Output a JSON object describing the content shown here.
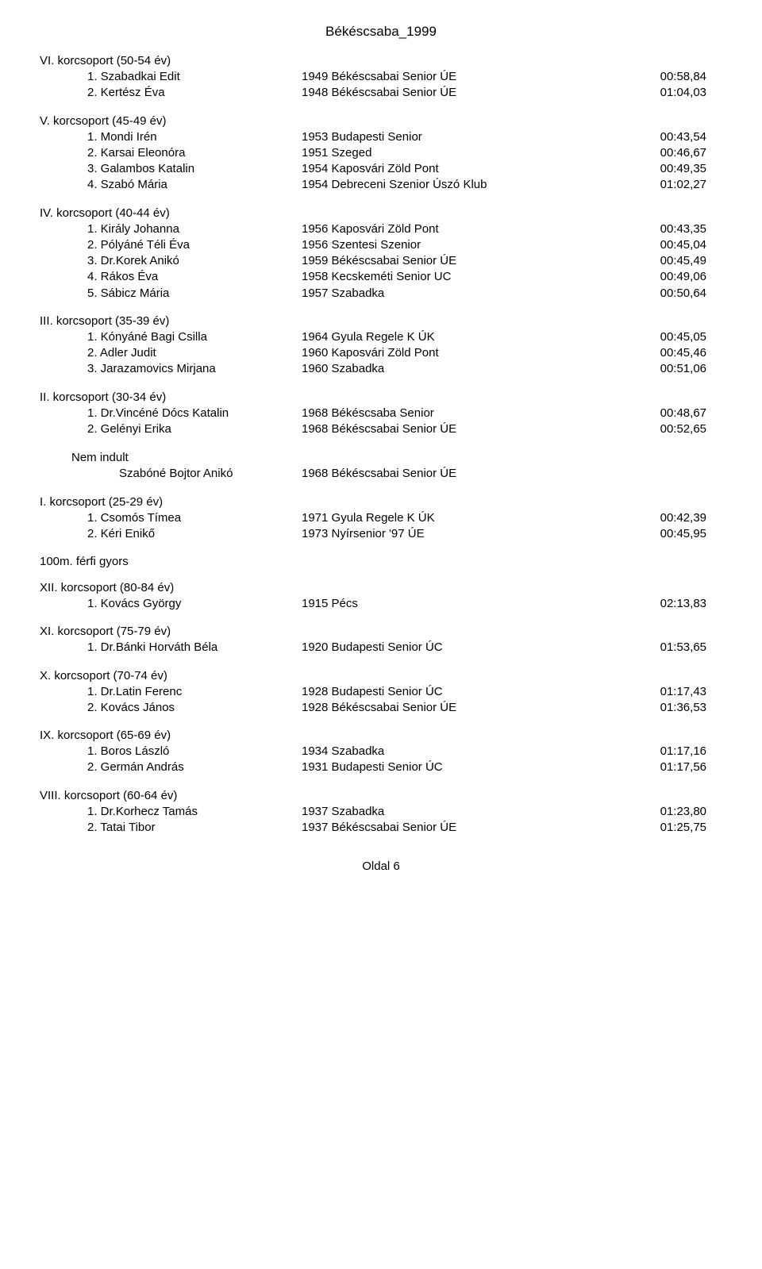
{
  "page_title": "Békéscsaba_1999",
  "footer": "Oldal 6",
  "groups": [
    {
      "heading": "VI. korcsoport (50-54 év)",
      "rows": [
        {
          "n": "1.",
          "name": "Szabadkai Edit",
          "club": "1949 Békéscsabai Senior ÚE",
          "time": "00:58,84"
        },
        {
          "n": "2.",
          "name": "Kertész Éva",
          "club": "1948 Békéscsabai Senior ÚE",
          "time": "01:04,03"
        }
      ]
    },
    {
      "heading": "V. korcsoport (45-49 év)",
      "rows": [
        {
          "n": "1.",
          "name": "Mondi Irén",
          "club": "1953 Budapesti Senior",
          "time": "00:43,54"
        },
        {
          "n": "2.",
          "name": "Karsai Eleonóra",
          "club": "1951 Szeged",
          "time": "00:46,67"
        },
        {
          "n": "3.",
          "name": "Galambos Katalin",
          "club": "1954 Kaposvári Zöld Pont",
          "time": "00:49,35"
        },
        {
          "n": "4.",
          "name": "Szabó Mária",
          "club": "1954 Debreceni Szenior Úszó Klub",
          "time": "01:02,27"
        }
      ]
    },
    {
      "heading": "IV. korcsoport (40-44 év)",
      "rows": [
        {
          "n": "1.",
          "name": "Király Johanna",
          "club": "1956 Kaposvári Zöld Pont",
          "time": "00:43,35"
        },
        {
          "n": "2.",
          "name": "Pólyáné Téli Éva",
          "club": "1956 Szentesi Szenior",
          "time": "00:45,04"
        },
        {
          "n": "3.",
          "name": "Dr.Korek Anikó",
          "club": "1959 Békéscsabai Senior ÚE",
          "time": "00:45,49"
        },
        {
          "n": "4.",
          "name": "Rákos Éva",
          "club": "1958 Kecskeméti Senior UC",
          "time": "00:49,06"
        },
        {
          "n": "5.",
          "name": "Sábicz Mária",
          "club": "1957 Szabadka",
          "time": "00:50,64"
        }
      ]
    },
    {
      "heading": "III. korcsoport (35-39 év)",
      "rows": [
        {
          "n": "1.",
          "name": "Kónyáné Bagi Csilla",
          "club": "1964 Gyula Regele K ÚK",
          "time": "00:45,05"
        },
        {
          "n": "2.",
          "name": "Adler Judit",
          "club": "1960 Kaposvári Zöld Pont",
          "time": "00:45,46"
        },
        {
          "n": "3.",
          "name": "Jarazamovics Mirjana",
          "club": "1960 Szabadka",
          "time": "00:51,06"
        }
      ]
    },
    {
      "heading": "II. korcsoport (30-34 év)",
      "rows": [
        {
          "n": "1.",
          "name": "Dr.Vincéné Dócs Katalin",
          "club": "1968 Békéscsaba Senior",
          "time": "00:48,67"
        },
        {
          "n": "2.",
          "name": "Gelényi Erika",
          "club": "1968 Békéscsabai Senior ÚE",
          "time": "00:52,65"
        }
      ]
    }
  ],
  "nem_indult": {
    "label": "Nem indult",
    "name": "Szabóné Bojtor Anikó",
    "club": "1968 Békéscsabai Senior ÚE"
  },
  "groups2": [
    {
      "heading": "I. korcsoport (25-29 év)",
      "rows": [
        {
          "n": "1.",
          "name": "Csomós Tímea",
          "club": "1971 Gyula Regele K ÚK",
          "time": "00:42,39"
        },
        {
          "n": "2.",
          "name": "Kéri Enikő",
          "club": "1973 Nyírsenior '97 ÚE",
          "time": "00:45,95"
        }
      ]
    }
  ],
  "event_title": "100m. férfi gyors",
  "groups3": [
    {
      "heading": "XII. korcsoport (80-84 év)",
      "rows": [
        {
          "n": "1.",
          "name": "Kovács György",
          "club": "1915 Pécs",
          "time": "02:13,83"
        }
      ]
    },
    {
      "heading": "XI. korcsoport (75-79 év)",
      "rows": [
        {
          "n": "1.",
          "name": "Dr.Bánki Horváth Béla",
          "club": "1920 Budapesti Senior ÚC",
          "time": "01:53,65"
        }
      ]
    },
    {
      "heading": "X. korcsoport (70-74 év)",
      "rows": [
        {
          "n": "1.",
          "name": "Dr.Latin Ferenc",
          "club": "1928 Budapesti Senior ÚC",
          "time": "01:17,43"
        },
        {
          "n": "2.",
          "name": "Kovács János",
          "club": "1928 Békéscsabai Senior ÚE",
          "time": "01:36,53"
        }
      ]
    },
    {
      "heading": "IX. korcsoport (65-69 év)",
      "rows": [
        {
          "n": "1.",
          "name": "Boros László",
          "club": "1934 Szabadka",
          "time": "01:17,16"
        },
        {
          "n": "2.",
          "name": "Germán András",
          "club": "1931 Budapesti Senior ÚC",
          "time": "01:17,56"
        }
      ]
    },
    {
      "heading": "VIII. korcsoport (60-64 év)",
      "rows": [
        {
          "n": "1.",
          "name": "Dr.Korhecz Tamás",
          "club": "1937 Szabadka",
          "time": "01:23,80"
        },
        {
          "n": "2.",
          "name": "Tatai Tibor",
          "club": "1937 Békéscsabai Senior ÚE",
          "time": "01:25,75"
        }
      ]
    }
  ]
}
